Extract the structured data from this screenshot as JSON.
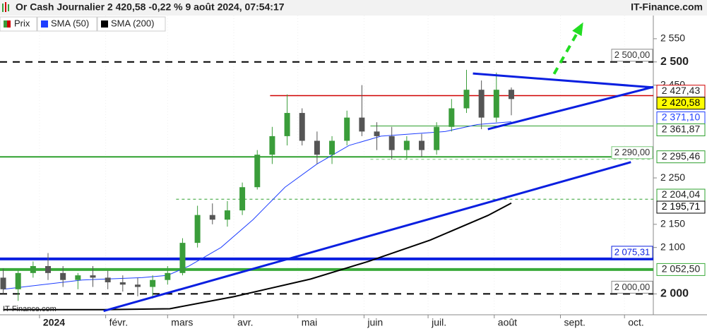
{
  "chart_data": {
    "type": "candlestick",
    "title": "Or Cash Journalier 2 420,58 -0,22 % 9 août 2024, 07:54:17",
    "brand": "IT-Finance.com",
    "watermark": "IT-Finance.com",
    "name": "Prix",
    "up_color": "#3a9d3a",
    "down_color": "#555555",
    "x": [
      -17,
      -10,
      -3,
      4,
      11,
      18,
      25,
      32,
      39,
      46,
      53,
      60,
      67,
      74,
      81,
      88,
      95,
      102,
      109,
      116,
      123,
      130,
      137,
      144,
      151,
      158,
      165,
      172,
      179,
      186,
      193,
      200,
      207,
      214,
      221
    ],
    "open": [
      2035,
      2010,
      2045,
      2060,
      2045,
      2030,
      2040,
      2035,
      2025,
      2020,
      2015,
      2030,
      2045,
      2110,
      2170,
      2160,
      2180,
      2230,
      2300,
      2340,
      2390,
      2330,
      2300,
      2330,
      2380,
      2350,
      2340,
      2310,
      2330,
      2310,
      2360,
      2400,
      2440,
      2380,
      2440
    ],
    "high": [
      2055,
      2050,
      2070,
      2088,
      2060,
      2045,
      2060,
      2050,
      2040,
      2035,
      2040,
      2060,
      2120,
      2190,
      2195,
      2200,
      2240,
      2310,
      2360,
      2430,
      2400,
      2350,
      2340,
      2395,
      2450,
      2370,
      2360,
      2340,
      2345,
      2370,
      2420,
      2483,
      2460,
      2477,
      2445
    ],
    "low": [
      2000,
      1985,
      2035,
      2030,
      2015,
      2010,
      2015,
      2010,
      2005,
      1995,
      1990,
      2020,
      2040,
      2100,
      2150,
      2145,
      2170,
      2225,
      2280,
      2320,
      2320,
      2280,
      2280,
      2320,
      2340,
      2310,
      2290,
      2290,
      2295,
      2300,
      2350,
      2390,
      2355,
      2370,
      2385
    ],
    "close": [
      2010,
      2045,
      2060,
      2045,
      2030,
      2040,
      2035,
      2025,
      2020,
      2015,
      2030,
      2045,
      2110,
      2170,
      2160,
      2180,
      2230,
      2300,
      2340,
      2390,
      2330,
      2300,
      2330,
      2380,
      2350,
      2340,
      2310,
      2330,
      2310,
      2360,
      2400,
      2440,
      2380,
      2440,
      2420
    ],
    "lines": [
      {
        "name": "SMA (50)",
        "color": "#1f3fff",
        "width": 1,
        "x": [
          -17,
          20,
          48,
          60,
          70,
          85,
          100,
          115,
          130,
          145,
          160,
          175,
          190,
          205,
          221
        ],
        "values": [
          2010,
          2030,
          2035,
          2040,
          2060,
          2100,
          2160,
          2230,
          2280,
          2320,
          2340,
          2345,
          2350,
          2365,
          2371.1
        ]
      },
      {
        "name": "SMA (200)",
        "color": "#000000",
        "width": 2,
        "x": [
          -17,
          30,
          61,
          91,
          127,
          154,
          183,
          210,
          221
        ],
        "values": [
          1966,
          1966,
          1968,
          1994,
          2032,
          2070,
          2116,
          2169,
          2195.71
        ]
      }
    ],
    "levels": [
      {
        "value": 2500,
        "label": "2 500,00",
        "color": "#000000",
        "width": 2,
        "dash": true,
        "place": "inside"
      },
      {
        "value": 2000,
        "label": "2 000,00",
        "color": "#000000",
        "width": 2,
        "dash": true,
        "place": "inside"
      },
      {
        "value": 2427.43,
        "label": "2 427,43",
        "color": "#d00000",
        "width": 1.5,
        "from": 108,
        "place": "axis"
      },
      {
        "value": 2361.87,
        "label": "2 361,87",
        "color": "#2ea02e",
        "width": 1,
        "from": 155,
        "place": "axis"
      },
      {
        "value": 2295.46,
        "label": "2 295,46",
        "color": "#2ea02e",
        "width": 2,
        "place": "axis"
      },
      {
        "value": 2290,
        "label": "2 290,00",
        "color": "#7ac87a",
        "width": 1,
        "dash": true,
        "from": 155,
        "place": "inside"
      },
      {
        "value": 2204.04,
        "label": "2 204,04",
        "color": "#2ea02e",
        "width": 1,
        "dash": true,
        "from": 64,
        "place": "axis"
      },
      {
        "value": 2075.31,
        "label": "2 075,31",
        "color": "#0a1fe0",
        "width": 4,
        "place": "inside"
      },
      {
        "value": 2052.5,
        "label": "2 052,50",
        "color": "#3aaa3a",
        "width": 4,
        "place": "axis"
      }
    ],
    "tags": [
      {
        "value": 2420.58,
        "label": "2 420,58",
        "color": "#000000",
        "bg": "#ffff00"
      },
      {
        "value": 2371.1,
        "label": "2 371,10",
        "color": "#1f3fff",
        "bg": "#ffffff"
      },
      {
        "value": 2195.71,
        "label": "2 195,71",
        "color": "#000000",
        "bg": "#ffffff"
      }
    ],
    "trendlines": [
      {
        "color": "#0a1fe0",
        "points": [
          [
            203,
            2475
          ],
          [
            287.5,
            2445
          ]
        ]
      },
      {
        "color": "#0a1fe0",
        "points": [
          [
            210,
            2355
          ],
          [
            287.5,
            2446
          ]
        ]
      },
      {
        "color": "#0a1fe0",
        "points": [
          [
            30,
            1963
          ],
          [
            277,
            2284
          ]
        ]
      }
    ],
    "arrow": {
      "color": "#22dd22",
      "points": [
        [
          241,
          2474
        ],
        [
          254,
          2580
        ]
      ]
    },
    "xlim": [
      -18.5,
      287.5
    ],
    "xticks": [
      {
        "value": 0,
        "label": "2024",
        "bold": true
      },
      {
        "value": 31,
        "label": "févr."
      },
      {
        "value": 60,
        "label": "mars"
      },
      {
        "value": 91,
        "label": "avr."
      },
      {
        "value": 121,
        "label": "mai"
      },
      {
        "value": 152,
        "label": "juin"
      },
      {
        "value": 182,
        "label": "juil."
      },
      {
        "value": 213,
        "label": "août"
      },
      {
        "value": 244,
        "label": "sept."
      },
      {
        "value": 274,
        "label": "oct."
      }
    ],
    "ylim": [
      1955,
      2600
    ],
    "yticks": [
      {
        "value": 2000,
        "label": "2 000",
        "bold": true
      },
      {
        "value": 2100,
        "label": "2 100"
      },
      {
        "value": 2150,
        "label": "2 150"
      },
      {
        "value": 2250,
        "label": "2 250"
      },
      {
        "value": 2450,
        "label": "2 450"
      },
      {
        "value": 2500,
        "label": "2 500",
        "bold": true
      },
      {
        "value": 2550,
        "label": "2 550"
      }
    ]
  }
}
